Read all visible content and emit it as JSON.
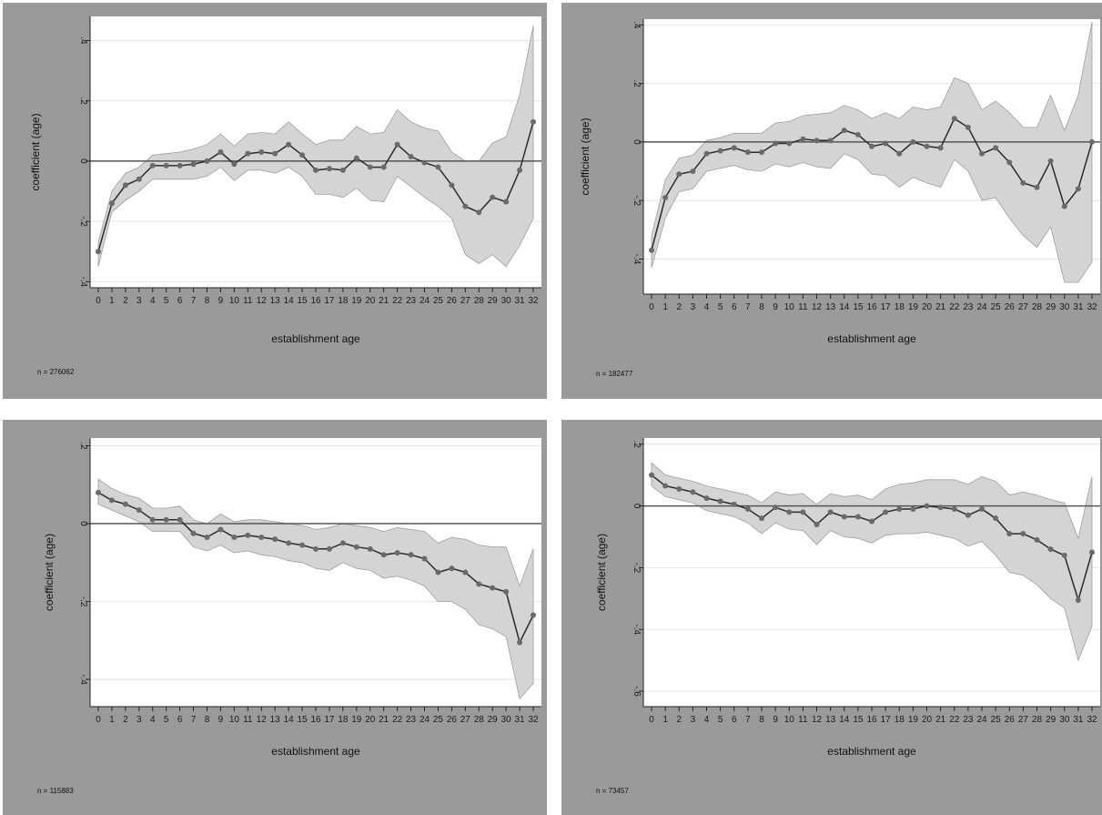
{
  "colors": {
    "panel_bg": "#9a9a9a",
    "plot_bg": "#ffffff",
    "band": "#d4d4d4",
    "band_edge": "#9e9e9e",
    "line": "#2a2a2a",
    "marker": "#6a6a6a",
    "gridline": "#e4e4e4",
    "zero_line": "#555555"
  },
  "chart_data": [
    {
      "type": "line",
      "title": "",
      "xlabel": "establishment age",
      "ylabel": "coefficient (age)",
      "note": "n = 276062",
      "x": [
        0,
        1,
        2,
        3,
        4,
        5,
        6,
        7,
        8,
        9,
        10,
        11,
        12,
        13,
        14,
        15,
        16,
        17,
        18,
        19,
        20,
        21,
        22,
        23,
        24,
        25,
        26,
        27,
        28,
        29,
        30,
        31,
        32
      ],
      "ylim": [
        -0.42,
        0.48
      ],
      "yticks": [
        -0.4,
        -0.2,
        0,
        0.2,
        0.4
      ],
      "ytick_labels": [
        "-.4",
        "-.2",
        "0",
        ".2",
        ".4"
      ],
      "grid": true,
      "series": [
        {
          "values": [
            -0.3,
            -0.14,
            -0.08,
            -0.06,
            -0.015,
            -0.015,
            -0.015,
            -0.01,
            0.0,
            0.03,
            -0.01,
            0.025,
            0.03,
            0.025,
            0.055,
            0.02,
            -0.03,
            -0.025,
            -0.03,
            0.01,
            -0.02,
            -0.02,
            0.055,
            0.015,
            -0.005,
            -0.02,
            -0.08,
            -0.15,
            -0.17,
            -0.12,
            -0.135,
            -0.03,
            0.13
          ],
          "lower": [
            -0.35,
            -0.17,
            -0.13,
            -0.1,
            -0.06,
            -0.06,
            -0.06,
            -0.06,
            -0.05,
            -0.02,
            -0.065,
            -0.03,
            -0.03,
            -0.04,
            -0.02,
            -0.05,
            -0.11,
            -0.11,
            -0.12,
            -0.09,
            -0.13,
            -0.135,
            -0.05,
            -0.085,
            -0.12,
            -0.15,
            -0.19,
            -0.31,
            -0.34,
            -0.31,
            -0.35,
            -0.28,
            -0.19
          ],
          "upper": [
            -0.27,
            -0.1,
            -0.04,
            -0.02,
            0.02,
            0.025,
            0.03,
            0.04,
            0.055,
            0.09,
            0.05,
            0.09,
            0.095,
            0.09,
            0.13,
            0.09,
            0.055,
            0.07,
            0.07,
            0.115,
            0.09,
            0.095,
            0.17,
            0.13,
            0.11,
            0.1,
            0.03,
            0.0,
            0.0,
            0.06,
            0.08,
            0.22,
            0.45
          ]
        }
      ]
    },
    {
      "type": "line",
      "title": "",
      "xlabel": "establishment age",
      "ylabel": "coefficient (age)",
      "note": "n = 182477",
      "x": [
        0,
        1,
        2,
        3,
        4,
        5,
        6,
        7,
        8,
        9,
        10,
        11,
        12,
        13,
        14,
        15,
        16,
        17,
        18,
        19,
        20,
        21,
        22,
        23,
        24,
        25,
        26,
        27,
        28,
        29,
        30,
        31,
        32
      ],
      "ylim": [
        -0.52,
        0.42
      ],
      "yticks": [
        -0.4,
        -0.2,
        0,
        0.2,
        0.4
      ],
      "ytick_labels": [
        "-.4",
        "-.2",
        "0",
        ".2",
        ".4"
      ],
      "grid": true,
      "series": [
        {
          "values": [
            -0.37,
            -0.19,
            -0.11,
            -0.1,
            -0.04,
            -0.03,
            -0.02,
            -0.035,
            -0.035,
            -0.005,
            -0.005,
            0.01,
            0.005,
            0.005,
            0.04,
            0.025,
            -0.015,
            -0.005,
            -0.04,
            0.0,
            -0.015,
            -0.02,
            0.08,
            0.05,
            -0.04,
            -0.02,
            -0.07,
            -0.14,
            -0.155,
            -0.065,
            -0.22,
            -0.16,
            0.0
          ],
          "lower": [
            -0.43,
            -0.26,
            -0.17,
            -0.16,
            -0.1,
            -0.09,
            -0.08,
            -0.095,
            -0.1,
            -0.075,
            -0.085,
            -0.07,
            -0.085,
            -0.09,
            -0.04,
            -0.06,
            -0.11,
            -0.115,
            -0.155,
            -0.12,
            -0.14,
            -0.155,
            -0.06,
            -0.1,
            -0.2,
            -0.19,
            -0.26,
            -0.32,
            -0.36,
            -0.29,
            -0.48,
            -0.48,
            -0.41
          ],
          "upper": [
            -0.32,
            -0.13,
            -0.055,
            -0.045,
            0.005,
            0.015,
            0.03,
            0.03,
            0.03,
            0.065,
            0.07,
            0.09,
            0.095,
            0.1,
            0.125,
            0.11,
            0.08,
            0.1,
            0.08,
            0.12,
            0.11,
            0.12,
            0.22,
            0.2,
            0.11,
            0.14,
            0.1,
            0.05,
            0.05,
            0.16,
            0.04,
            0.16,
            0.41
          ]
        }
      ]
    },
    {
      "type": "line",
      "title": "",
      "xlabel": "establishment age",
      "ylabel": "coefficient (age)",
      "note": "n = 115883",
      "x": [
        0,
        1,
        2,
        3,
        4,
        5,
        6,
        7,
        8,
        9,
        10,
        11,
        12,
        13,
        14,
        15,
        16,
        17,
        18,
        19,
        20,
        21,
        22,
        23,
        24,
        25,
        26,
        27,
        28,
        29,
        30,
        31,
        32
      ],
      "ylim": [
        -0.47,
        0.22
      ],
      "yticks": [
        -0.4,
        -0.2,
        0,
        0.2
      ],
      "ytick_labels": [
        "-.4",
        "-.2",
        "0",
        ".2"
      ],
      "grid": true,
      "series": [
        {
          "values": [
            0.08,
            0.06,
            0.05,
            0.035,
            0.01,
            0.01,
            0.01,
            -0.025,
            -0.035,
            -0.015,
            -0.035,
            -0.03,
            -0.035,
            -0.04,
            -0.05,
            -0.055,
            -0.065,
            -0.065,
            -0.05,
            -0.06,
            -0.065,
            -0.08,
            -0.075,
            -0.08,
            -0.09,
            -0.125,
            -0.115,
            -0.125,
            -0.155,
            -0.165,
            -0.175,
            -0.305,
            -0.235
          ],
          "lower": [
            0.05,
            0.035,
            0.02,
            0.005,
            -0.02,
            -0.02,
            -0.02,
            -0.06,
            -0.07,
            -0.055,
            -0.075,
            -0.07,
            -0.08,
            -0.085,
            -0.095,
            -0.1,
            -0.115,
            -0.12,
            -0.1,
            -0.115,
            -0.12,
            -0.14,
            -0.135,
            -0.145,
            -0.16,
            -0.2,
            -0.2,
            -0.22,
            -0.26,
            -0.27,
            -0.29,
            -0.45,
            -0.41
          ],
          "upper": [
            0.115,
            0.09,
            0.075,
            0.065,
            0.04,
            0.04,
            0.045,
            0.01,
            0.0,
            0.025,
            0.005,
            0.01,
            0.01,
            0.005,
            0.0,
            -0.005,
            -0.015,
            -0.01,
            0.0,
            -0.005,
            -0.01,
            -0.02,
            -0.01,
            -0.015,
            -0.02,
            -0.05,
            -0.035,
            -0.04,
            -0.055,
            -0.06,
            -0.06,
            -0.16,
            -0.065
          ]
        }
      ]
    },
    {
      "type": "line",
      "title": "",
      "xlabel": "establishment age",
      "ylabel": "coefficient (age)",
      "note": "n = 73457",
      "x": [
        0,
        1,
        2,
        3,
        4,
        5,
        6,
        7,
        8,
        9,
        10,
        11,
        12,
        13,
        14,
        15,
        16,
        17,
        18,
        19,
        20,
        21,
        22,
        23,
        24,
        25,
        26,
        27,
        28,
        29,
        30,
        31,
        32
      ],
      "ylim": [
        -0.65,
        0.22
      ],
      "yticks": [
        -0.6,
        -0.4,
        -0.2,
        0,
        0.2
      ],
      "ytick_labels": [
        "-.6",
        "-.4",
        "-.2",
        "0",
        ".2"
      ],
      "grid": true,
      "series": [
        {
          "values": [
            0.1,
            0.065,
            0.055,
            0.045,
            0.025,
            0.015,
            0.005,
            -0.01,
            -0.04,
            -0.005,
            -0.02,
            -0.02,
            -0.06,
            -0.02,
            -0.035,
            -0.035,
            -0.05,
            -0.02,
            -0.01,
            -0.01,
            0.0,
            -0.005,
            -0.01,
            -0.03,
            -0.01,
            -0.04,
            -0.09,
            -0.09,
            -0.11,
            -0.14,
            -0.16,
            -0.305,
            -0.15
          ],
          "lower": [
            0.065,
            0.03,
            0.02,
            0.01,
            -0.015,
            -0.025,
            -0.035,
            -0.055,
            -0.09,
            -0.055,
            -0.075,
            -0.08,
            -0.125,
            -0.08,
            -0.1,
            -0.105,
            -0.12,
            -0.095,
            -0.09,
            -0.09,
            -0.085,
            -0.095,
            -0.105,
            -0.13,
            -0.115,
            -0.16,
            -0.215,
            -0.225,
            -0.255,
            -0.3,
            -0.33,
            -0.5,
            -0.39
          ],
          "upper": [
            0.14,
            0.1,
            0.09,
            0.08,
            0.065,
            0.055,
            0.045,
            0.035,
            0.01,
            0.045,
            0.035,
            0.04,
            0.005,
            0.04,
            0.03,
            0.035,
            0.02,
            0.055,
            0.07,
            0.075,
            0.085,
            0.085,
            0.085,
            0.07,
            0.095,
            0.08,
            0.035,
            0.045,
            0.035,
            0.02,
            0.01,
            -0.105,
            0.095
          ]
        }
      ]
    }
  ]
}
